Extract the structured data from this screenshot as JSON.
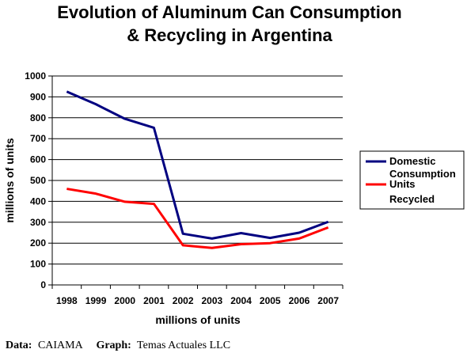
{
  "chart_data": {
    "type": "line",
    "title_lines": [
      "Evolution of Aluminum Can Consumption",
      "& Recycling in Argentina"
    ],
    "xlabel": "millions of units",
    "ylabel": "millions of units",
    "ylim": [
      0,
      1000
    ],
    "yticks": [
      0,
      100,
      200,
      300,
      400,
      500,
      600,
      700,
      800,
      900,
      1000
    ],
    "categories": [
      "1998",
      "1999",
      "2000",
      "2001",
      "2002",
      "2003",
      "2004",
      "2005",
      "2006",
      "2007"
    ],
    "grid": true,
    "legend_position": "right",
    "series": [
      {
        "name_lines": [
          "Domestic",
          "Consumption"
        ],
        "color": "#000080",
        "values": [
          925,
          865,
          795,
          752,
          245,
          222,
          248,
          225,
          250,
          302
        ]
      },
      {
        "name_lines": [
          "Units",
          "Recycled"
        ],
        "color": "#ff0000",
        "values": [
          460,
          437,
          398,
          388,
          190,
          177,
          195,
          200,
          222,
          275
        ]
      }
    ]
  },
  "footer": {
    "data_key": "Data:",
    "data_value": "CAIAMA",
    "graph_key": "Graph:",
    "graph_value": "Temas Actuales LLC"
  }
}
